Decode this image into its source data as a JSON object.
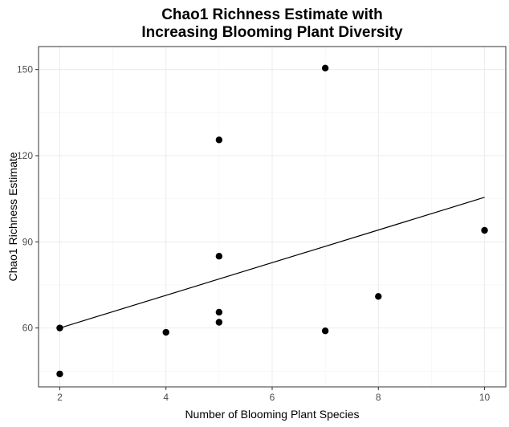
{
  "chart_data": {
    "type": "scatter",
    "title_lines": [
      "Chao1 Richness Estimate with",
      "Increasing Blooming Plant Diversity"
    ],
    "xlabel": "Number of Blooming Plant Species",
    "ylabel": "Chao1 Richness Estimate",
    "xlim": [
      1.6,
      10.4
    ],
    "ylim": [
      39.5,
      158
    ],
    "x_ticks": [
      2,
      4,
      6,
      8,
      10
    ],
    "y_ticks": [
      60,
      90,
      120,
      150
    ],
    "grid": true,
    "points": [
      {
        "x": 2,
        "y": 60
      },
      {
        "x": 2,
        "y": 44
      },
      {
        "x": 4,
        "y": 58.5
      },
      {
        "x": 5,
        "y": 125.5
      },
      {
        "x": 5,
        "y": 85
      },
      {
        "x": 5,
        "y": 65.5
      },
      {
        "x": 5,
        "y": 62
      },
      {
        "x": 7,
        "y": 150.5
      },
      {
        "x": 7,
        "y": 59
      },
      {
        "x": 8,
        "y": 71
      },
      {
        "x": 10,
        "y": 94
      }
    ],
    "fit_line": {
      "x": [
        2,
        10
      ],
      "y": [
        60,
        105.5
      ]
    }
  }
}
